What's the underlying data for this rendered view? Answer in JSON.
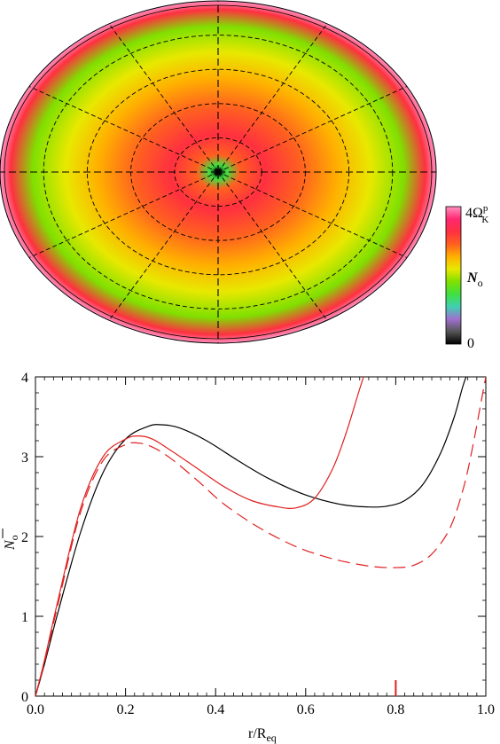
{
  "chart_data": [
    {
      "type": "heatmap",
      "description_shape": "ellipse",
      "colorbar": {
        "max_label_main": "4Ω",
        "max_label_sup": "p",
        "max_label_sub": "K",
        "min_label": "0",
        "quantity_main": "N",
        "quantity_sub": "o",
        "range": [
          0,
          4
        ],
        "colors": [
          "#000000",
          "#555555",
          "#a070d0",
          "#40d0b0",
          "#40e040",
          "#80e000",
          "#e8e800",
          "#ffb000",
          "#ff6020",
          "#ff3040",
          "#ff2870",
          "#ff90c0"
        ]
      },
      "radial_profile": [
        {
          "r": 0.0,
          "value": 0.0
        },
        {
          "r": 0.04,
          "value": 1.4
        },
        {
          "r": 0.1,
          "value": 3.0
        },
        {
          "r": 0.22,
          "value": 3.25
        },
        {
          "r": 0.38,
          "value": 3.0
        },
        {
          "r": 0.55,
          "value": 2.45
        },
        {
          "r": 0.7,
          "value": 2.05
        },
        {
          "r": 0.85,
          "value": 1.9
        },
        {
          "r": 0.95,
          "value": 3.2
        },
        {
          "r": 1.0,
          "value": 4.0
        }
      ]
    },
    {
      "type": "line",
      "xlabel_main": "r/R",
      "xlabel_sub": "eq",
      "ylabel_main": "N",
      "ylabel_sub": "o",
      "xlim": [
        0,
        1
      ],
      "ylim": [
        0,
        4
      ],
      "xticks": [
        "0.0",
        "0.2",
        "0.4",
        "0.6",
        "0.8",
        "1.0"
      ],
      "yticks": [
        "0",
        "1",
        "2",
        "3",
        "4"
      ],
      "series": [
        {
          "color": "#000000",
          "dash": "solid",
          "x": [
            0.0,
            0.02,
            0.05,
            0.1,
            0.15,
            0.2,
            0.25,
            0.28,
            0.32,
            0.38,
            0.45,
            0.52,
            0.6,
            0.68,
            0.74,
            0.78,
            0.82,
            0.86,
            0.9,
            0.93,
            0.95,
            0.97
          ],
          "y": [
            0.0,
            0.4,
            1.05,
            2.05,
            2.8,
            3.22,
            3.38,
            3.4,
            3.36,
            3.2,
            2.95,
            2.72,
            2.52,
            2.4,
            2.37,
            2.38,
            2.45,
            2.65,
            3.05,
            3.5,
            3.9,
            4.2
          ]
        },
        {
          "color": "#e02020",
          "dash": "solid",
          "x": [
            0.0,
            0.02,
            0.05,
            0.1,
            0.15,
            0.2,
            0.23,
            0.26,
            0.3,
            0.36,
            0.42,
            0.48,
            0.54,
            0.58,
            0.62,
            0.66,
            0.69,
            0.72,
            0.74,
            0.75
          ],
          "y": [
            0.0,
            0.45,
            1.2,
            2.35,
            3.0,
            3.22,
            3.26,
            3.22,
            3.08,
            2.85,
            2.62,
            2.45,
            2.37,
            2.36,
            2.48,
            2.85,
            3.3,
            3.85,
            4.2,
            4.4
          ]
        },
        {
          "color": "#e02020",
          "dash": "dashed",
          "x": [
            0.0,
            0.02,
            0.05,
            0.1,
            0.15,
            0.2,
            0.23,
            0.26,
            0.3,
            0.36,
            0.42,
            0.5,
            0.58,
            0.66,
            0.74,
            0.8,
            0.84,
            0.88,
            0.92,
            0.95,
            0.97,
            0.99,
            1.0
          ],
          "y": [
            0.0,
            0.42,
            1.15,
            2.3,
            2.95,
            3.15,
            3.17,
            3.12,
            2.98,
            2.7,
            2.4,
            2.1,
            1.87,
            1.72,
            1.63,
            1.61,
            1.64,
            1.78,
            2.1,
            2.6,
            3.1,
            3.7,
            4.0
          ]
        }
      ],
      "annotations": [
        {
          "type": "vertical-tick",
          "x": 0.8,
          "y_from": 0.0,
          "y_to": 0.2,
          "color": "#e02020"
        }
      ]
    }
  ]
}
